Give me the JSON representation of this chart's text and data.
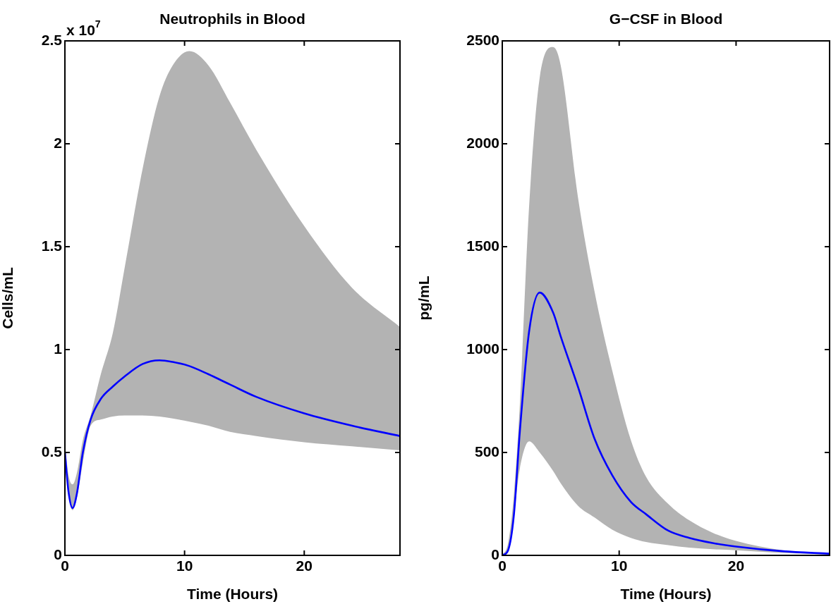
{
  "chart_data": [
    {
      "type": "line",
      "title": "Neutrophils in Blood",
      "xlabel": "Time (Hours)",
      "ylabel": "Cells/mL",
      "annotations": [
        "x 10$^{7}$"
      ],
      "xlim": [
        0,
        28
      ],
      "xticks": [
        0,
        10,
        20
      ],
      "ylim": [
        0,
        2.5
      ],
      "yticks": [
        0,
        0.5,
        1,
        1.5,
        2,
        2.5
      ],
      "grid": false,
      "x": [
        0,
        0.3,
        0.64,
        1,
        1.5,
        2.15,
        3,
        4,
        5,
        6.5,
        7.9,
        9,
        10.4,
        12,
        13.8,
        16,
        20,
        24,
        28
      ],
      "series": [
        {
          "color": "#0000ff",
          "values": [
            0.5,
            0.31,
            0.23,
            0.3,
            0.5,
            0.66,
            0.76,
            0.82,
            0.87,
            0.93,
            0.948,
            0.94,
            0.92,
            0.88,
            0.83,
            0.77,
            0.69,
            0.63,
            0.58
          ],
          "upper": [
            0.55,
            0.39,
            0.345,
            0.4,
            0.56,
            0.68,
            0.88,
            1.08,
            1.4,
            1.88,
            2.23,
            2.38,
            2.45,
            2.38,
            2.2,
            1.97,
            1.6,
            1.3,
            1.11
          ],
          "lower": [
            0.5,
            0.3,
            0.22,
            0.28,
            0.45,
            0.63,
            0.66,
            0.675,
            0.68,
            0.68,
            0.675,
            0.665,
            0.65,
            0.63,
            0.6,
            0.58,
            0.55,
            0.53,
            0.51
          ]
        }
      ]
    },
    {
      "type": "line",
      "title": "G−CSF in Blood",
      "xlabel": "Time (Hours)",
      "ylabel": "pg/mL",
      "xlim": [
        0,
        28
      ],
      "xticks": [
        0,
        10,
        20
      ],
      "ylim": [
        0,
        2500
      ],
      "yticks": [
        0,
        500,
        1000,
        1500,
        2000,
        2500
      ],
      "grid": false,
      "x": [
        0,
        0.5,
        1,
        1.5,
        2.3,
        3.2,
        4.35,
        5,
        6.5,
        7.9,
        9.4,
        11,
        12.3,
        14.2,
        16,
        18,
        20,
        24,
        28
      ],
      "series": [
        {
          "color": "#0000ff",
          "values": [
            0,
            25,
            200,
            600,
            1090,
            1277,
            1180,
            1064,
            815,
            566,
            390,
            260,
            200,
            120,
            85,
            60,
            43,
            20,
            8
          ],
          "upper": [
            0,
            60,
            300,
            730,
            1700,
            2320,
            2470,
            2380,
            1730,
            1280,
            900,
            560,
            382,
            250,
            170,
            110,
            70,
            25,
            10
          ],
          "lower": [
            0,
            25,
            200,
            420,
            554,
            500,
            410,
            350,
            240,
            184,
            125,
            85,
            65,
            50,
            38,
            30,
            25,
            12,
            5
          ]
        }
      ]
    }
  ]
}
